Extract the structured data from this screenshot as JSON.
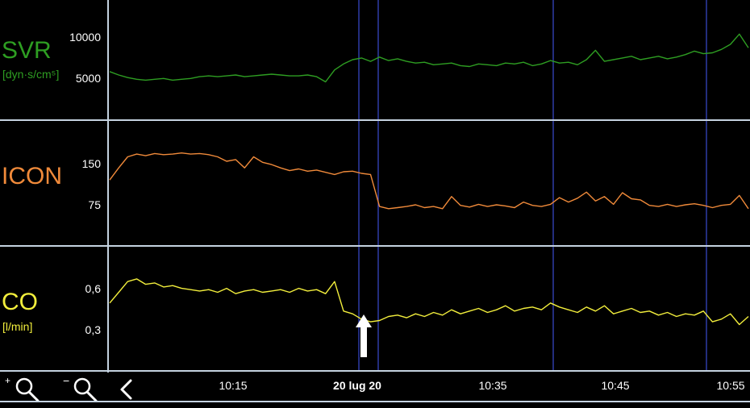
{
  "colors": {
    "svr": "#2e9e22",
    "icon": "#f08a3a",
    "co": "#f2ee3c",
    "grid": "#c4d2e0",
    "marker": "#3a4bd0"
  },
  "panels": {
    "svr": {
      "title": "SVR",
      "unit": "[dyn·s/cm⁵]",
      "ticks": [
        "10000",
        "5000"
      ]
    },
    "icon": {
      "title": "ICON",
      "ticks": [
        "150",
        "75"
      ]
    },
    "co": {
      "title": "CO",
      "unit": "[l/min]",
      "ticks": [
        "0,6",
        "0,3"
      ]
    }
  },
  "toolbar": {
    "zoom_in": "zoom-in",
    "zoom_out": "zoom-out",
    "back": "back"
  },
  "timeline": {
    "labels": [
      "10:15",
      "20 lug 20",
      "10:35",
      "10:45",
      "10:55"
    ]
  },
  "chart_data": {
    "type": "line",
    "markers": "vertical reference lines",
    "series": [
      {
        "name": "SVR",
        "y_ticks": [
          5000,
          10000
        ],
        "ylim": [
          0,
          14000
        ],
        "values": [
          5600,
          5200,
          4900,
          4700,
          4600,
          4700,
          4800,
          4600,
          4700,
          4800,
          5000,
          5100,
          5000,
          5100,
          5200,
          5000,
          5100,
          5200,
          5300,
          5200,
          5100,
          5100,
          5200,
          5000,
          4400,
          5800,
          6500,
          7000,
          7200,
          6800,
          7300,
          6900,
          7100,
          6800,
          6600,
          6700,
          6400,
          6500,
          6600,
          6300,
          6200,
          6500,
          6400,
          6300,
          6600,
          6500,
          6700,
          6300,
          6500,
          6900,
          6600,
          6700,
          6400,
          7000,
          8100,
          6800,
          7000,
          7200,
          7400,
          7000,
          7200,
          7400,
          7100,
          7300,
          7600,
          8000,
          7700,
          7800,
          8200,
          8800,
          10000,
          8400
        ]
      },
      {
        "name": "ICON",
        "y_ticks": [
          75,
          150
        ],
        "ylim": [
          0,
          225
        ],
        "values": [
          118,
          140,
          160,
          165,
          162,
          166,
          164,
          165,
          167,
          165,
          166,
          164,
          160,
          152,
          155,
          140,
          160,
          150,
          146,
          140,
          135,
          138,
          134,
          136,
          132,
          128,
          133,
          134,
          130,
          128,
          70,
          66,
          68,
          70,
          73,
          68,
          70,
          66,
          88,
          72,
          69,
          74,
          70,
          73,
          71,
          68,
          78,
          72,
          70,
          74,
          86,
          78,
          85,
          96,
          80,
          88,
          74,
          95,
          84,
          82,
          72,
          70,
          74,
          70,
          73,
          75,
          72,
          68,
          72,
          74,
          90,
          66
        ]
      },
      {
        "name": "CO",
        "y_ticks": [
          0.3,
          0.6
        ],
        "ylim": [
          0,
          0.92
        ],
        "values": [
          0.5,
          0.58,
          0.66,
          0.68,
          0.64,
          0.65,
          0.62,
          0.63,
          0.61,
          0.6,
          0.59,
          0.6,
          0.58,
          0.61,
          0.57,
          0.59,
          0.6,
          0.58,
          0.59,
          0.6,
          0.58,
          0.61,
          0.59,
          0.6,
          0.57,
          0.66,
          0.44,
          0.42,
          0.38,
          0.36,
          0.37,
          0.4,
          0.41,
          0.39,
          0.42,
          0.4,
          0.43,
          0.41,
          0.45,
          0.42,
          0.44,
          0.46,
          0.43,
          0.45,
          0.48,
          0.44,
          0.46,
          0.47,
          0.45,
          0.5,
          0.47,
          0.45,
          0.43,
          0.47,
          0.44,
          0.48,
          0.42,
          0.44,
          0.46,
          0.43,
          0.44,
          0.41,
          0.43,
          0.4,
          0.42,
          0.41,
          0.44,
          0.36,
          0.38,
          0.42,
          0.34,
          0.4
        ]
      }
    ]
  }
}
